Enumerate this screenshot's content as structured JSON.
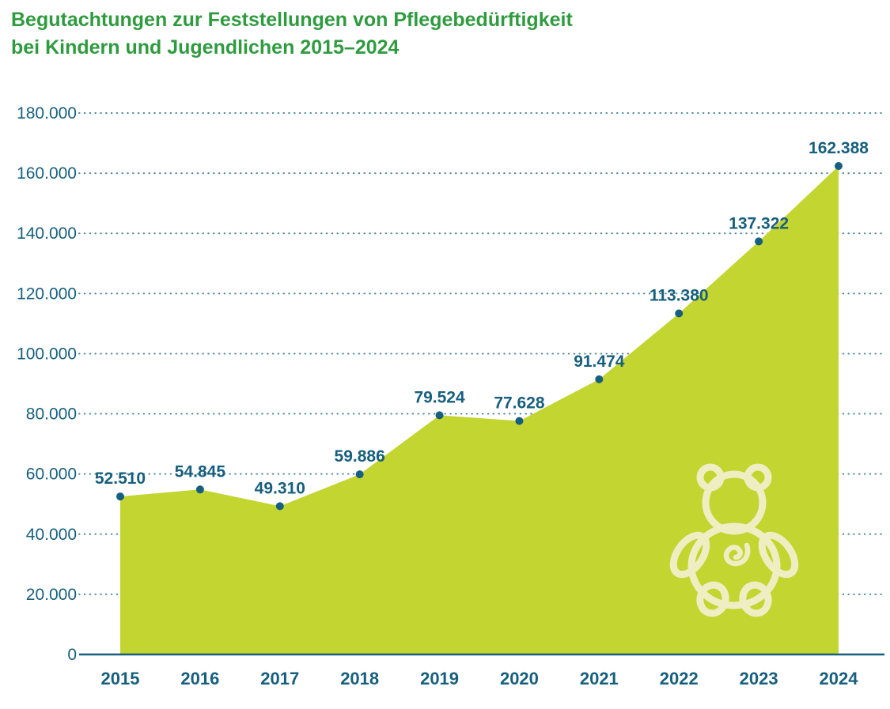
{
  "title": {
    "line1": "Begutachtungen zur Feststellungen von Pflegebedürftigkeit",
    "line2": "bei Kindern und Jugendlichen 2015–2024"
  },
  "chart_data": {
    "type": "area",
    "title": "Begutachtungen zur Feststellungen von Pflegebedürftigkeit bei Kindern und Jugendlichen 2015–2024",
    "categories": [
      "2015",
      "2016",
      "2017",
      "2018",
      "2019",
      "2020",
      "2021",
      "2022",
      "2023",
      "2024"
    ],
    "values": [
      52510,
      54845,
      49310,
      59886,
      79524,
      77628,
      91474,
      113380,
      137322,
      162388
    ],
    "value_labels": [
      "52.510",
      "54.845",
      "49.310",
      "59.886",
      "79.524",
      "77.628",
      "91.474",
      "113.380",
      "137.322",
      "162.388"
    ],
    "xlabel": "",
    "ylabel": "",
    "ylim": [
      0,
      180000
    ],
    "ytick_step": 20000,
    "ytick_labels": [
      "0",
      "20.000",
      "40.000",
      "60.000",
      "80.000",
      "100.000",
      "120.000",
      "140.000",
      "160.000",
      "180.000"
    ],
    "grid": "horizontal dotted",
    "legend": "none",
    "decoration": "teddy-bear-outline-icon",
    "colors": {
      "title": "#2f9b3f",
      "area": "#c3d530",
      "text": "#175f7e",
      "grid": "#4f88a0",
      "point": "#175f7e",
      "bear": "#f4f1d2"
    }
  }
}
